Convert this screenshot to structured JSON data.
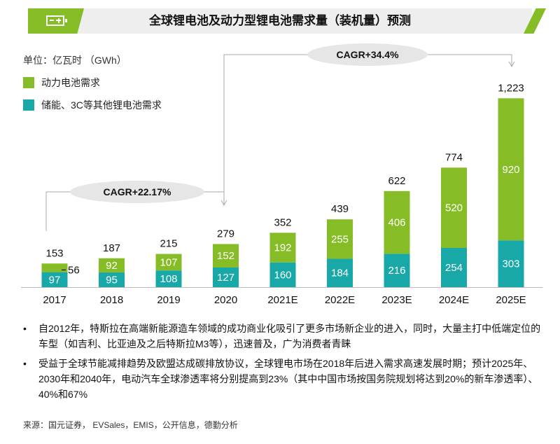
{
  "header": {
    "title": "全球锂电池及动力型锂电池需求量（装机量）预测",
    "icon": "battery-icon",
    "accent": "#86bc25"
  },
  "unit": "单位：亿瓦时 （GWh）",
  "legend": [
    {
      "label": "动力电池需求",
      "color": "#86bc25"
    },
    {
      "label": "储能、3C等其他锂电池需求",
      "color": "#18a8a8"
    }
  ],
  "chart_data": {
    "type": "bar",
    "stacked": true,
    "categories": [
      "2017",
      "2018",
      "2019",
      "2020",
      "2021E",
      "2022E",
      "2023E",
      "2024E",
      "2025E"
    ],
    "series": [
      {
        "name": "储能、3C等其他锂电池需求",
        "color": "#18a8a8",
        "values": [
          97,
          95,
          108,
          127,
          160,
          184,
          216,
          254,
          303
        ]
      },
      {
        "name": "动力电池需求",
        "color": "#86bc25",
        "values": [
          56,
          92,
          107,
          152,
          192,
          255,
          406,
          520,
          920
        ]
      }
    ],
    "totals": [
      153,
      187,
      215,
      279,
      352,
      439,
      622,
      774,
      1223
    ],
    "segment_labels": {
      "other": [
        "97",
        "95",
        "108",
        "127",
        "160",
        "184",
        "216",
        "254",
        "303"
      ],
      "power": [
        "56",
        "92",
        "107",
        "152",
        "192",
        "255",
        "406",
        "520",
        "920"
      ]
    },
    "total_labels": [
      "153",
      "187",
      "215",
      "279",
      "352",
      "439",
      "622",
      "774",
      "1,223"
    ],
    "annotations": [
      {
        "text": "CAGR+22.17%",
        "from": "2017",
        "to": "2020"
      },
      {
        "text": "CAGR+34.4%",
        "from": "2020",
        "to": "2025E"
      }
    ],
    "legend_position": "top-left",
    "grid": false
  },
  "notes": [
    "自2012年，特斯拉在高端新能源造车领域的成功商业化吸引了更多市场新企业的进入，同时，大量主打中低端定位的车型（如吉利、比亚迪及之后特斯拉M3等），迅速普及，广为消费者青睐",
    "受益于全球节能减排趋势及欧盟达成碳排放协议，全球锂电市场在2018年后进入需求高速发展时期；预计2025年、2030年和2040年，电动汽车全球渗透率将分别提高到23%（其中中国市场按国务院规划将达到20%的新车渗透率）、40%和67%"
  ],
  "bullet": "•",
  "source": "来源：国元证券， EVSales，EMIS，公开信息，德勤分析"
}
